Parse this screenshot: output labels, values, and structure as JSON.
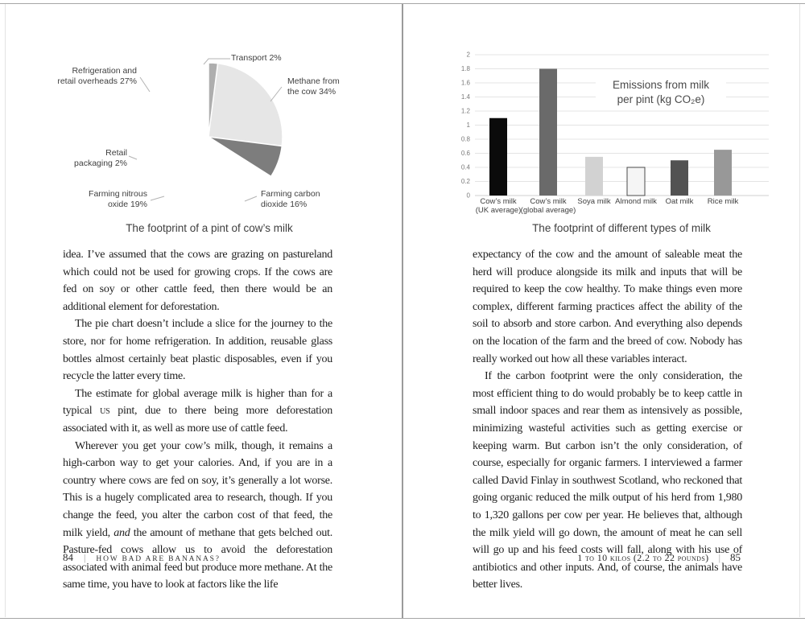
{
  "book": {
    "left_footer": {
      "page_number": "84",
      "separator": "|",
      "title": "HOW BAD ARE BANANAS?"
    },
    "right_footer": {
      "chapter": "1 to 10 kilos (2.2 to 22 pounds)",
      "separator": "|",
      "page_number": "85"
    }
  },
  "left_page": {
    "paragraphs": [
      [
        [
          "",
          "idea. I’ve assumed that the cows are grazing on pastureland which could not be used for growing crops. If the cows are fed on soy or other cattle feed, then there would be an additional element for deforestation."
        ]
      ],
      [
        [
          "",
          "The pie chart doesn’t include a slice for the journey to the store, nor for home refrigeration. In addition, reusable glass bottles almost certainly beat plastic disposables, even if you recycle the latter every time."
        ]
      ],
      [
        [
          "",
          "The estimate for global average milk is higher than for a typical "
        ],
        [
          "sc",
          "us"
        ],
        [
          "",
          " pint, due to there being more deforestation associated with it, as well as more use of cattle feed."
        ]
      ],
      [
        [
          "",
          "Wherever you get your cow’s milk, though, it remains a high-carbon way to get your calories. And, if you are in a country where cows are fed on soy, it’s generally a lot worse. This is a hugely complicated area to research, though. If you change the feed, you alter the carbon cost of that feed, the milk yield, "
        ],
        [
          "i",
          "and"
        ],
        [
          "",
          " the amount of methane that gets belched out. Pasture-fed cows allow us to avoid the deforestation associated with animal feed but produce more methane. At the same time, you have to look at factors like the life"
        ]
      ]
    ]
  },
  "right_page": {
    "paragraphs": [
      [
        [
          "",
          "expectancy of the cow and the amount of saleable meat the herd will produce alongside its milk and inputs that will be required to keep the cow healthy. To make things even more complex, different farming practices affect the ability of the soil to absorb and store carbon. And everything also depends on the location of the farm and the breed of cow. Nobody has really worked out how all these variables interact."
        ]
      ],
      [
        [
          "",
          "If the carbon footprint were the only consideration, the most efficient thing to do would probably be to keep cattle in small indoor spaces and rear them as intensively as possible, minimizing wasteful activities such as getting exercise or keeping warm. But carbon isn’t the only consideration, of course, especially for organic farmers. I interviewed a farmer called David Finlay in southwest Scotland, who reckoned that going organic reduced the milk output of his herd from 1,980 to 1,320 gallons per cow per year. He believes that, although the milk yield will go down, the amount of meat he can sell will go up and his feed costs will fall, along with his use of antibiotics and other inputs. And, of course, the animals have better lives."
        ]
      ]
    ]
  },
  "chart_data": [
    {
      "type": "pie",
      "caption": "The footprint of a pint of cow’s milk",
      "slices": [
        {
          "label": "Methane from the cow",
          "value": 34,
          "color": "#7d7d7d",
          "label_lines": [
            "Methane from",
            "the cow 34%"
          ]
        },
        {
          "label": "Farming carbon dioxide",
          "value": 16,
          "color": "#bcbcbc",
          "label_lines": [
            "Farming carbon",
            "dioxide 16%"
          ]
        },
        {
          "label": "Farming nitrous oxide",
          "value": 19,
          "color": "#9c9c9c",
          "label_lines": [
            "Farming nitrous",
            "oxide 19%"
          ]
        },
        {
          "label": "Retail packaging",
          "value": 2,
          "color": "#3b3b3b",
          "label_lines": [
            "Retail",
            "packaging 2%"
          ]
        },
        {
          "label": "Refrigeration and retail overheads",
          "value": 27,
          "color": "#e6e6e6",
          "label_lines": [
            "Refrigeration and",
            "retail overheads 27%"
          ]
        },
        {
          "label": "Transport",
          "value": 2,
          "color": "#aeaeae",
          "label_lines": [
            "Transport 2%"
          ]
        }
      ]
    },
    {
      "type": "bar",
      "title_lines": [
        "Emissions from milk",
        "per pint (kg CO₂e)"
      ],
      "categories": [
        "Cow’s milk\n(UK average)",
        "Cow’s milk\n(global average)",
        "Soya milk",
        "Almond milk",
        "Oat milk",
        "Rice milk"
      ],
      "values": [
        1.1,
        1.8,
        0.55,
        0.4,
        0.5,
        0.65
      ],
      "colors": [
        "#0b0b0b",
        "#6a6a6a",
        "#d2d2d2",
        "#f5f5f5",
        "#525252",
        "#989898"
      ],
      "bar_borders": [
        null,
        null,
        null,
        "#4a4a4a",
        null,
        null
      ],
      "ylim": [
        0,
        2
      ],
      "yticks": [
        0,
        0.2,
        0.4,
        0.6,
        0.8,
        1,
        1.2,
        1.4,
        1.6,
        1.8,
        2
      ],
      "ytick_labels": [
        "0",
        "0.2",
        "0.4",
        "0.6",
        "0.8",
        "1",
        "1.2",
        "1.4",
        "1.6",
        "1.8",
        "2"
      ],
      "grid": true,
      "legend": false,
      "caption": "The footprint of different types of milk"
    }
  ]
}
